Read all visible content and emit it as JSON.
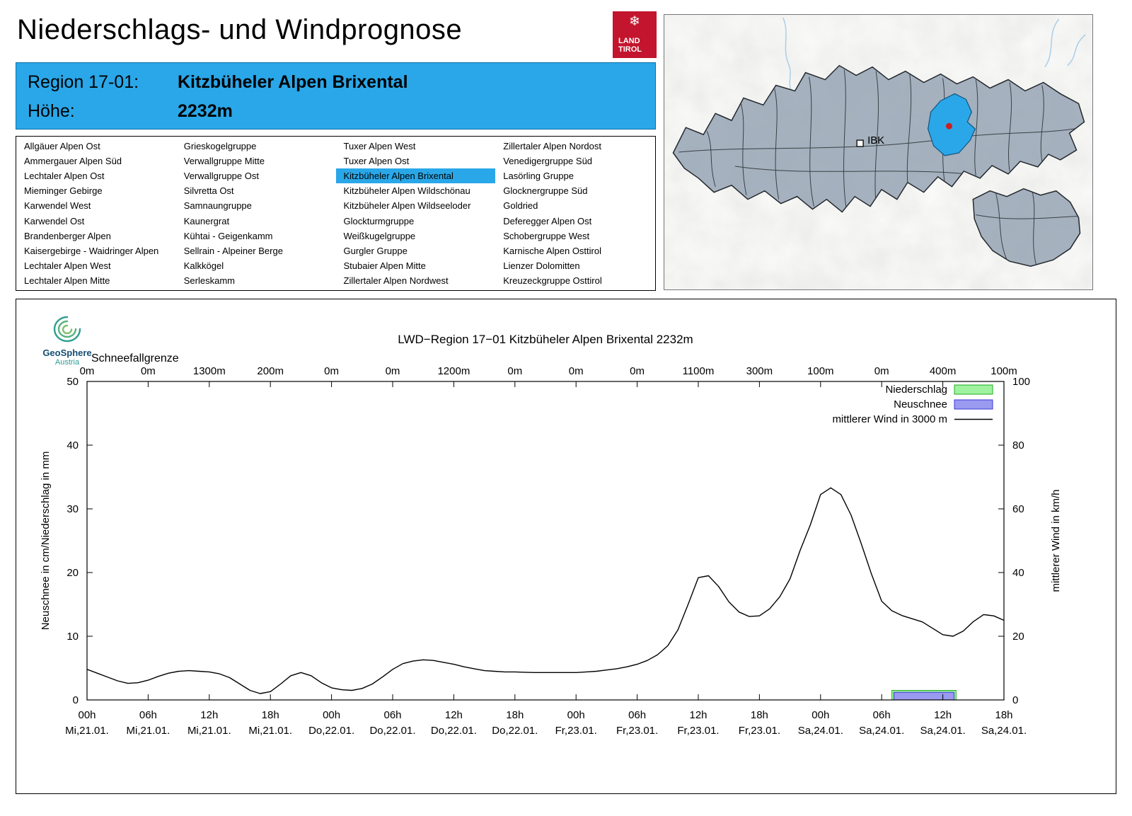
{
  "header": {
    "title": "Niederschlags- und Windprognose",
    "logo": {
      "flake_icon": "snowflake",
      "line1": "LAND",
      "line2": "TIROL"
    }
  },
  "region_box": {
    "region_label": "Region 17-01:",
    "region_value": "Kitzbüheler Alpen Brixental",
    "elevation_label": "Höhe:",
    "elevation_value": "2232m"
  },
  "region_list": {
    "selected": "Kitzbüheler Alpen Brixental",
    "columns": [
      [
        "Allgäuer Alpen Ost",
        "Ammergauer Alpen Süd",
        "Lechtaler Alpen Ost",
        "Mieminger Gebirge",
        "Karwendel West",
        "Karwendel Ost",
        "Brandenberger Alpen",
        "Kaisergebirge - Waidringer Alpen",
        "Lechtaler Alpen West",
        "Lechtaler Alpen Mitte"
      ],
      [
        "Grieskogelgruppe",
        "Verwallgruppe Mitte",
        "Verwallgruppe Ost",
        "Silvretta Ost",
        "Samnaungruppe",
        "Kaunergrat",
        "Kühtai - Geigenkamm",
        "Sellrain - Alpeiner Berge",
        "Kalkkögel",
        "Serleskamm"
      ],
      [
        "Tuxer Alpen West",
        "Tuxer Alpen Ost",
        "Kitzbüheler Alpen Brixental",
        "Kitzbüheler Alpen Wildschönau",
        "Kitzbüheler Alpen Wildseeloder",
        "Glockturmgruppe",
        "Weißkugelgruppe",
        "Gurgler Gruppe",
        "Stubaier Alpen Mitte",
        "Zillertaler Alpen Nordwest"
      ],
      [
        "Zillertaler Alpen Nordost",
        "Venedigergruppe Süd",
        "Lasörling Gruppe",
        "Glocknergruppe Süd",
        "Goldried",
        "Deferegger Alpen Ost",
        "Schobergruppe West",
        "Karnische Alpen Osttirol",
        "Lienzer Dolomitten",
        "Kreuzeckgruppe Osttirol"
      ]
    ]
  },
  "map": {
    "marker_label": "IBK"
  },
  "geosphere": {
    "name": "GeoSphere",
    "sub": "Austria"
  },
  "chart_data": {
    "type": "line",
    "title": "LWD−Region 17−01 Kitzbüheler Alpen Brixental 2232m",
    "ylabel_left": "Neuschnee in cm/Niederschlag in mm",
    "ylabel_right": "mittlerer Wind in km/h",
    "ylim_left": [
      0,
      50
    ],
    "ylim_right": [
      0,
      100
    ],
    "yticks_left": [
      0,
      10,
      20,
      30,
      40,
      50
    ],
    "yticks_right": [
      0,
      20,
      40,
      60,
      80,
      100
    ],
    "x_total_hours": 90,
    "x_tick_interval_hours": 6,
    "x_ticks": [
      {
        "t": "00h",
        "d": "Mi,21.01."
      },
      {
        "t": "06h",
        "d": "Mi,21.01."
      },
      {
        "t": "12h",
        "d": "Mi,21.01."
      },
      {
        "t": "18h",
        "d": "Mi,21.01."
      },
      {
        "t": "00h",
        "d": "Do,22.01."
      },
      {
        "t": "06h",
        "d": "Do,22.01."
      },
      {
        "t": "12h",
        "d": "Do,22.01."
      },
      {
        "t": "18h",
        "d": "Do,22.01."
      },
      {
        "t": "00h",
        "d": "Fr,23.01."
      },
      {
        "t": "06h",
        "d": "Fr,23.01."
      },
      {
        "t": "12h",
        "d": "Fr,23.01."
      },
      {
        "t": "18h",
        "d": "Fr,23.01."
      },
      {
        "t": "00h",
        "d": "Sa,24.01."
      },
      {
        "t": "06h",
        "d": "Sa,24.01."
      },
      {
        "t": "12h",
        "d": "Sa,24.01."
      },
      {
        "t": "18h",
        "d": "Sa,24.01."
      }
    ],
    "schneefallgrenze": {
      "label": "Schneefallgrenze",
      "values": [
        "0m",
        "0m",
        "1300m",
        "200m",
        "0m",
        "0m",
        "1200m",
        "0m",
        "0m",
        "0m",
        "1100m",
        "300m",
        "100m",
        "0m",
        "400m",
        "100m"
      ]
    },
    "legend": [
      {
        "label": "Niederschlag",
        "swatch": "box",
        "fill": "#9ff29f",
        "stroke": "#1fae1f"
      },
      {
        "label": "Neuschnee",
        "swatch": "box",
        "fill": "#9a9af0",
        "stroke": "#3b3bd6"
      },
      {
        "label": "mittlerer Wind in 3000 m",
        "swatch": "line",
        "stroke": "#000000"
      }
    ],
    "series": [
      {
        "name": "mittlerer Wind in 3000 m",
        "axis": "right",
        "unit": "km/h",
        "points": [
          [
            0,
            9.6
          ],
          [
            1,
            8.4
          ],
          [
            2,
            7.2
          ],
          [
            3,
            6.0
          ],
          [
            4,
            5.2
          ],
          [
            5,
            5.4
          ],
          [
            6,
            6.2
          ],
          [
            7,
            7.4
          ],
          [
            8,
            8.4
          ],
          [
            9,
            9.0
          ],
          [
            10,
            9.2
          ],
          [
            11,
            9.0
          ],
          [
            12,
            8.8
          ],
          [
            13,
            8.2
          ],
          [
            14,
            7.0
          ],
          [
            15,
            5.0
          ],
          [
            16,
            3.0
          ],
          [
            17,
            2.0
          ],
          [
            18,
            2.6
          ],
          [
            19,
            5.0
          ],
          [
            20,
            7.6
          ],
          [
            21,
            8.6
          ],
          [
            22,
            7.6
          ],
          [
            23,
            5.4
          ],
          [
            24,
            3.8
          ],
          [
            25,
            3.2
          ],
          [
            26,
            3.0
          ],
          [
            27,
            3.6
          ],
          [
            28,
            5.0
          ],
          [
            29,
            7.2
          ],
          [
            30,
            9.6
          ],
          [
            31,
            11.4
          ],
          [
            32,
            12.2
          ],
          [
            33,
            12.6
          ],
          [
            34,
            12.4
          ],
          [
            35,
            11.8
          ],
          [
            36,
            11.2
          ],
          [
            37,
            10.4
          ],
          [
            38,
            9.8
          ],
          [
            39,
            9.2
          ],
          [
            40,
            9.0
          ],
          [
            41,
            8.8
          ],
          [
            42,
            8.8
          ],
          [
            43,
            8.7
          ],
          [
            44,
            8.6
          ],
          [
            45,
            8.6
          ],
          [
            46,
            8.6
          ],
          [
            47,
            8.6
          ],
          [
            48,
            8.6
          ],
          [
            49,
            8.8
          ],
          [
            50,
            9.0
          ],
          [
            51,
            9.4
          ],
          [
            52,
            9.8
          ],
          [
            53,
            10.4
          ],
          [
            54,
            11.2
          ],
          [
            55,
            12.4
          ],
          [
            56,
            14.2
          ],
          [
            57,
            17.0
          ],
          [
            58,
            22.0
          ],
          [
            59,
            30.0
          ],
          [
            60,
            38.4
          ],
          [
            61,
            39.0
          ],
          [
            62,
            35.6
          ],
          [
            63,
            30.8
          ],
          [
            64,
            27.6
          ],
          [
            65,
            26.2
          ],
          [
            66,
            26.4
          ],
          [
            67,
            28.6
          ],
          [
            68,
            32.4
          ],
          [
            69,
            38.0
          ],
          [
            70,
            47.0
          ],
          [
            71,
            55.0
          ],
          [
            72,
            64.5
          ],
          [
            73,
            66.6
          ],
          [
            74,
            64.5
          ],
          [
            75,
            58.0
          ],
          [
            76,
            49.0
          ],
          [
            77,
            39.5
          ],
          [
            78,
            31.0
          ],
          [
            79,
            28.0
          ],
          [
            80,
            26.5
          ],
          [
            81,
            25.5
          ],
          [
            82,
            24.5
          ],
          [
            83,
            22.5
          ],
          [
            84,
            20.5
          ],
          [
            85,
            20.0
          ],
          [
            86,
            21.6
          ],
          [
            87,
            24.6
          ],
          [
            88,
            26.8
          ],
          [
            89,
            26.4
          ],
          [
            90,
            25.0
          ]
        ]
      }
    ],
    "bars": [
      {
        "name": "Niederschlag",
        "unit": "mm",
        "axis": "left",
        "start_hour": 79.0,
        "end_hour": 85.3,
        "value": 1.5,
        "fill": "#9ff29f",
        "stroke": "#1fae1f"
      },
      {
        "name": "Neuschnee",
        "unit": "cm",
        "axis": "left",
        "start_hour": 79.2,
        "end_hour": 85.1,
        "value": 1.2,
        "fill": "#9a9af0",
        "stroke": "#3b3bd6"
      }
    ]
  }
}
